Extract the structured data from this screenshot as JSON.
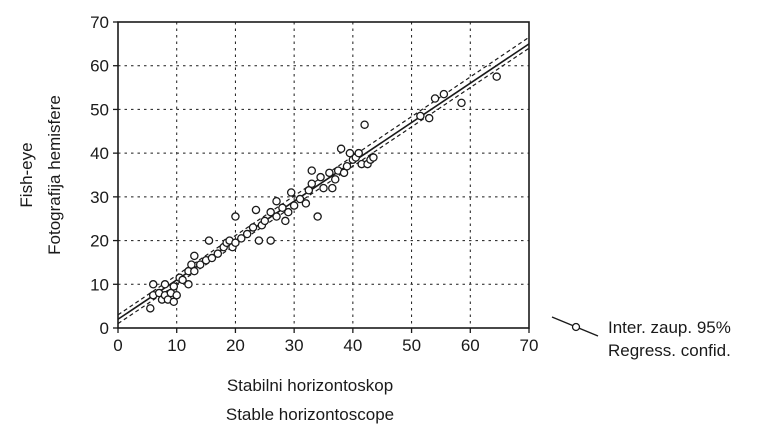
{
  "chart_data": {
    "type": "scatter",
    "xlabel": [
      "Stabilni horizontoskop",
      "Stable horizontoscope"
    ],
    "ylabel": [
      "Fish-eye",
      "Fotografija hemisfere"
    ],
    "xlim": [
      0,
      70
    ],
    "ylim": [
      0,
      70
    ],
    "xticks": [
      0,
      10,
      20,
      30,
      40,
      50,
      60,
      70
    ],
    "yticks": [
      0,
      10,
      20,
      30,
      40,
      50,
      60,
      70
    ],
    "grid": "dotted",
    "legend": {
      "position": "right",
      "entries": [
        "Inter. zaup. 95%",
        "Regress. confid."
      ]
    },
    "regression": {
      "x": [
        0,
        70
      ],
      "y": [
        2,
        65
      ]
    },
    "confidence_band": {
      "upper": {
        "x": [
          0,
          70
        ],
        "y": [
          3,
          66.5
        ]
      },
      "lower": {
        "x": [
          0,
          70
        ],
        "y": [
          1,
          64
        ]
      }
    },
    "points": [
      [
        5.5,
        4.5
      ],
      [
        6,
        7.5
      ],
      [
        6,
        10
      ],
      [
        7,
        8
      ],
      [
        7.5,
        6.5
      ],
      [
        8,
        7.5
      ],
      [
        8,
        10
      ],
      [
        8.5,
        6.5
      ],
      [
        9,
        8
      ],
      [
        9.5,
        6
      ],
      [
        9.5,
        9.5
      ],
      [
        10,
        7.5
      ],
      [
        10.5,
        11.5
      ],
      [
        11,
        11
      ],
      [
        12,
        10
      ],
      [
        12,
        13
      ],
      [
        12.5,
        14.5
      ],
      [
        13,
        16.5
      ],
      [
        13,
        13
      ],
      [
        14,
        14.5
      ],
      [
        15,
        15.5
      ],
      [
        15.5,
        20
      ],
      [
        16,
        16
      ],
      [
        17,
        17
      ],
      [
        18,
        18.5
      ],
      [
        18.5,
        19.5
      ],
      [
        19,
        20
      ],
      [
        19.5,
        18.5
      ],
      [
        20,
        19.5
      ],
      [
        20,
        25.5
      ],
      [
        21,
        20.5
      ],
      [
        22,
        21.5
      ],
      [
        23,
        23
      ],
      [
        23.5,
        27
      ],
      [
        24,
        20
      ],
      [
        24.5,
        23.5
      ],
      [
        25,
        24.5
      ],
      [
        26,
        26.5
      ],
      [
        26,
        20
      ],
      [
        27,
        25.5
      ],
      [
        27,
        29
      ],
      [
        28,
        27.5
      ],
      [
        28.5,
        24.5
      ],
      [
        29,
        26.5
      ],
      [
        29.5,
        31
      ],
      [
        30,
        28
      ],
      [
        31,
        29.5
      ],
      [
        32,
        28.5
      ],
      [
        32.5,
        31.5
      ],
      [
        33,
        33
      ],
      [
        33,
        36
      ],
      [
        34,
        25.5
      ],
      [
        34.5,
        34.5
      ],
      [
        35,
        32
      ],
      [
        36,
        35.5
      ],
      [
        36.5,
        32
      ],
      [
        37,
        34
      ],
      [
        37.5,
        36
      ],
      [
        38,
        41
      ],
      [
        38.5,
        35.5
      ],
      [
        39,
        37
      ],
      [
        39.5,
        40
      ],
      [
        40,
        38.5
      ],
      [
        40.5,
        39
      ],
      [
        41,
        40
      ],
      [
        41.5,
        37.5
      ],
      [
        42,
        46.5
      ],
      [
        42.5,
        37.5
      ],
      [
        43,
        38.5
      ],
      [
        43.5,
        39
      ],
      [
        51.5,
        48.5
      ],
      [
        53,
        48
      ],
      [
        54,
        52.5
      ],
      [
        55.5,
        53.5
      ],
      [
        58.5,
        51.5
      ],
      [
        64.5,
        57.5
      ]
    ]
  }
}
